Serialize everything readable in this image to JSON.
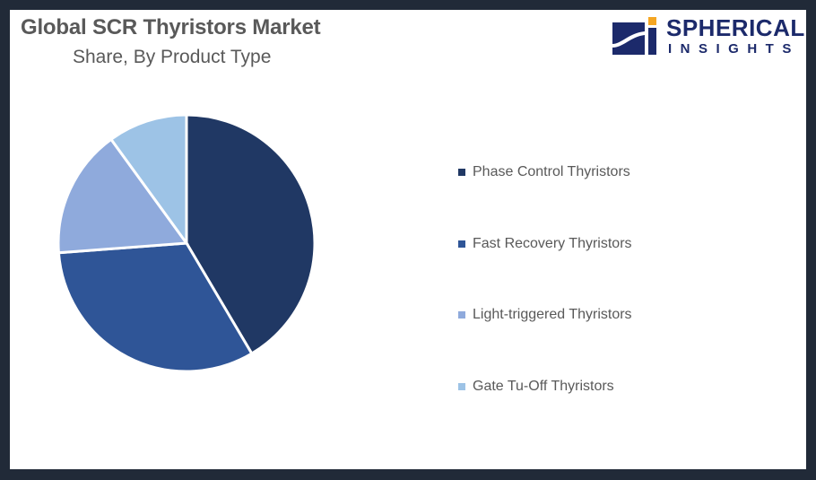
{
  "header": {
    "title": "Global SCR Thyristors Market",
    "subtitle": "Share, By Product Type"
  },
  "logo": {
    "line1": "SPHERICAL",
    "line2": "INSIGHTS",
    "colors": {
      "navy": "#1c2a6b",
      "accent": "#f5a623"
    }
  },
  "legend": {
    "items": [
      {
        "label": "Phase Control Thyristors",
        "color": "#203864"
      },
      {
        "label": "Fast Recovery Thyristors",
        "color": "#2f5597"
      },
      {
        "label": "Light-triggered Thyristors",
        "color": "#8faadc"
      },
      {
        "label": "Gate Tu-Off Thyristors",
        "color": "#9dc3e6"
      }
    ]
  },
  "chart_data": {
    "type": "pie",
    "title": "Global SCR Thyristors Market",
    "subtitle": "Share, By Product Type",
    "categories": [
      "Phase Control Thyristors",
      "Fast Recovery Thyristors",
      "Light-triggered Thyristors",
      "Gate Tu-Off Thyristors"
    ],
    "values": [
      41.5,
      32.3,
      16.2,
      10.0
    ],
    "unit": "%",
    "colors": [
      "#203864",
      "#2f5597",
      "#8faadc",
      "#9dc3e6"
    ],
    "start_angle": "12 o'clock, clockwise",
    "legend_position": "right",
    "data_labels": false
  }
}
